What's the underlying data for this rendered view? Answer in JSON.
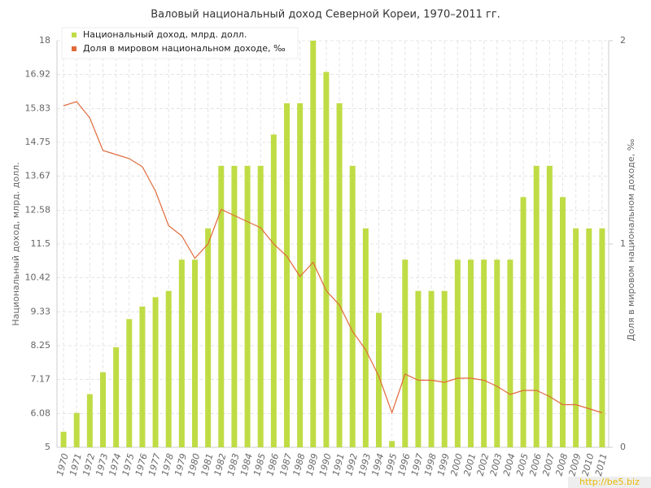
{
  "chart_data": {
    "type": "bar_line",
    "title": "Валовый национальный доход Северной Кореи, 1970–2011 гг.",
    "y_label": "Национальный доход, млрд. долл.",
    "y2_label": "Доля в мировом национальном доходе, ‰",
    "watermark": "http://be5.biz",
    "categories": [
      "1970",
      "1971",
      "1972",
      "1973",
      "1974",
      "1975",
      "1976",
      "1977",
      "1978",
      "1979",
      "1980",
      "1981",
      "1982",
      "1983",
      "1984",
      "1985",
      "1986",
      "1987",
      "1988",
      "1989",
      "1990",
      "1991",
      "1992",
      "1993",
      "1994",
      "1995",
      "1996",
      "1997",
      "1998",
      "1999",
      "2000",
      "2001",
      "2002",
      "2003",
      "2004",
      "2005",
      "2006",
      "2007",
      "2008",
      "2009",
      "2010",
      "2011"
    ],
    "series": [
      {
        "name": "Национальный доход, млрд. долл.",
        "color": "#bfdc45",
        "type": "bar",
        "values": [
          5.5,
          6.1,
          6.7,
          7.4,
          8.2,
          9.1,
          9.5,
          9.8,
          10,
          11,
          11,
          12,
          14,
          14,
          14,
          14,
          15,
          16,
          16,
          18,
          17,
          16,
          14,
          12,
          9.3,
          5.2,
          11,
          10,
          10,
          10,
          11,
          11,
          11,
          11,
          11,
          13,
          14,
          14,
          13,
          12,
          12,
          12
        ]
      },
      {
        "name": "Доля в мировом национальном доходе, ‰",
        "color": "#e06a3a",
        "type": "line",
        "axis": "y2",
        "values": [
          1.68,
          1.7,
          1.62,
          1.46,
          1.44,
          1.42,
          1.38,
          1.26,
          1.09,
          1.04,
          0.93,
          1.0,
          1.17,
          1.14,
          1.11,
          1.08,
          1.0,
          0.94,
          0.84,
          0.91,
          0.77,
          0.7,
          0.57,
          0.48,
          0.35,
          0.17,
          0.36,
          0.33,
          0.33,
          0.32,
          0.34,
          0.34,
          0.33,
          0.3,
          0.26,
          0.28,
          0.28,
          0.25,
          0.21,
          0.21,
          0.19,
          0.17
        ]
      }
    ],
    "ylim": [
      5,
      18
    ],
    "yticks": [
      5,
      6.08,
      7.17,
      8.25,
      9.33,
      10.42,
      11.5,
      12.58,
      13.67,
      14.75,
      15.83,
      16.92,
      18
    ],
    "y2lim": [
      0,
      2
    ],
    "y2ticks": [
      0,
      1,
      2
    ],
    "grid": true,
    "legend": "top-left"
  }
}
